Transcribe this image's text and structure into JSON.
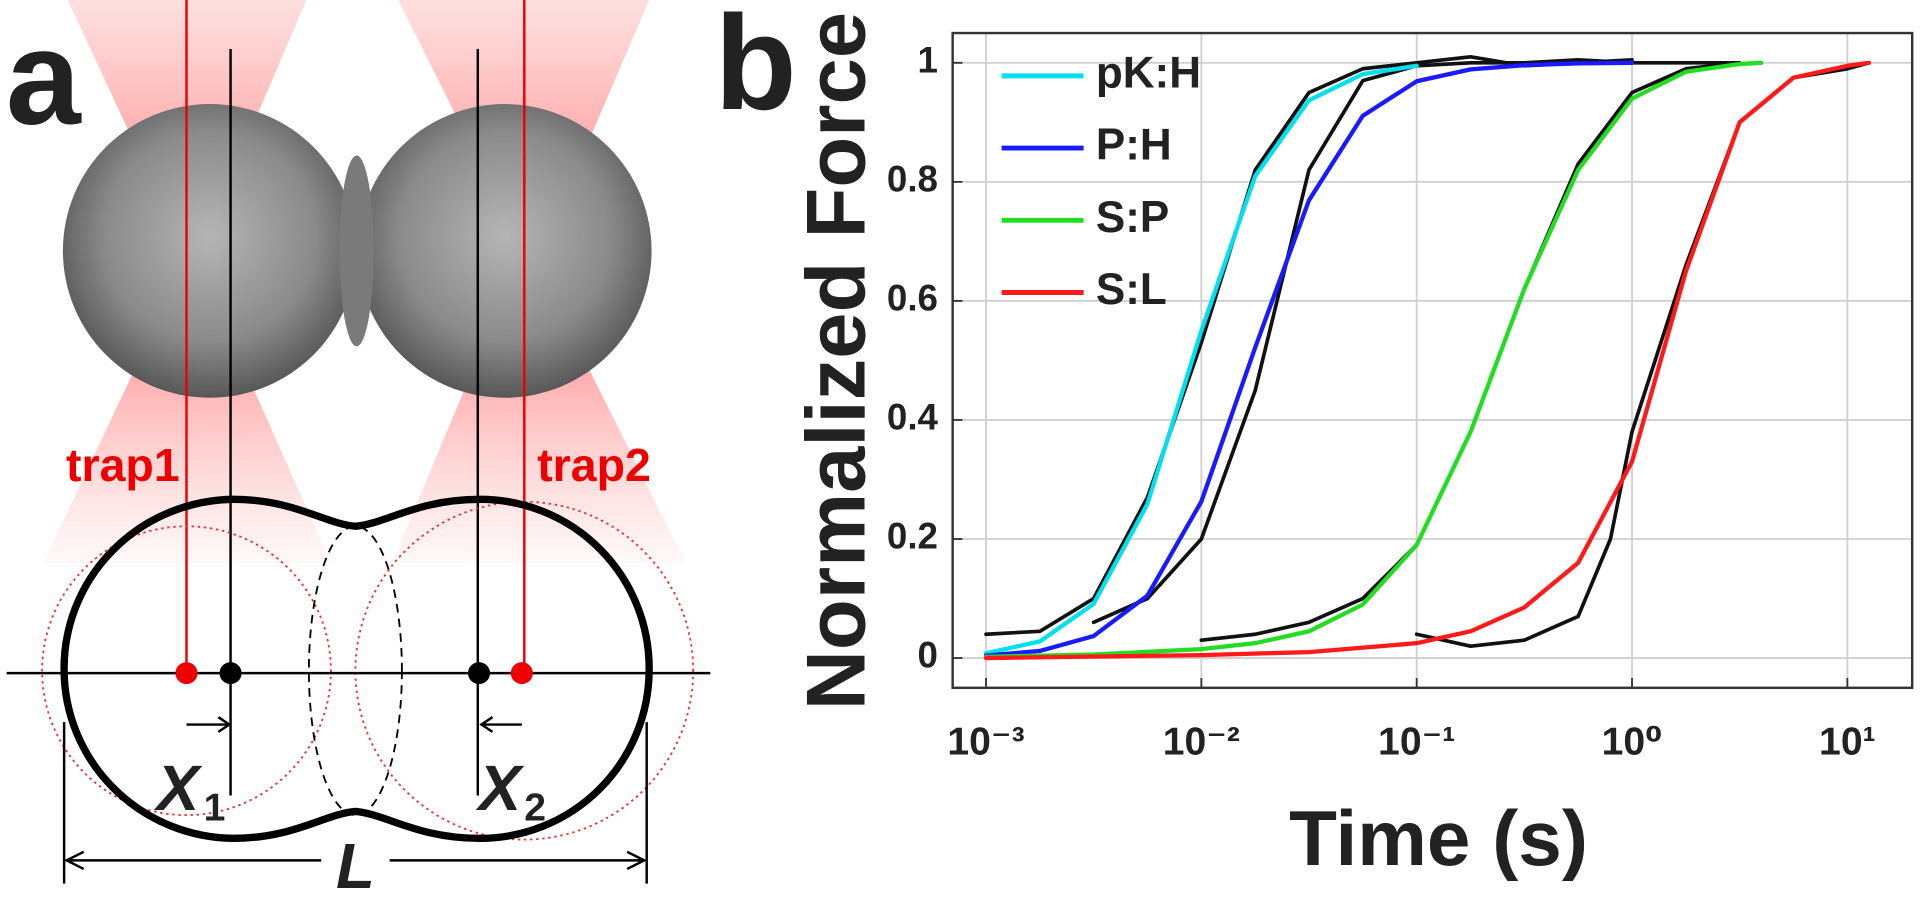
{
  "diagram": {
    "panel_label": "a",
    "trap_labels": [
      "trap1",
      "trap2"
    ],
    "displacements": [
      {
        "symbol": "X",
        "subscript": "1"
      },
      {
        "symbol": "X",
        "subscript": "2"
      }
    ],
    "length_label": "L"
  },
  "chart_data": {
    "type": "line",
    "panel_label": "b",
    "xlabel": "Time (s)",
    "ylabel": "Normalized Force",
    "xscale": "log",
    "xlim": [
      0.0007,
      20
    ],
    "ylim": [
      -0.05,
      1.05
    ],
    "xticks": [
      {
        "value": 0.001,
        "label": "10⁻³"
      },
      {
        "value": 0.01,
        "label": "10⁻²"
      },
      {
        "value": 0.1,
        "label": "10⁻¹"
      },
      {
        "value": 1,
        "label": "10⁰"
      },
      {
        "value": 10,
        "label": "10¹"
      }
    ],
    "yticks": [
      0,
      0.2,
      0.4,
      0.6,
      0.8,
      1
    ],
    "grid": true,
    "legend": "upper left",
    "series": [
      {
        "color": "#111111",
        "x": [
          0.001,
          0.00178,
          0.00316,
          0.00562,
          0.01,
          0.0178,
          0.0316,
          0.0562,
          0.1,
          0.178,
          0.316,
          0.562,
          1
        ],
        "values": [
          0.04,
          0.045,
          0.1,
          0.27,
          0.53,
          0.82,
          0.95,
          0.99,
          1.0,
          1.01,
          0.995,
          1.0,
          1.005
        ]
      },
      {
        "color": "#111111",
        "x": [
          0.00316,
          0.00562,
          0.01,
          0.0178,
          0.0316,
          0.0562,
          0.1,
          0.178,
          0.316,
          0.562,
          1,
          1.78,
          3.16
        ],
        "values": [
          0.06,
          0.1,
          0.2,
          0.45,
          0.82,
          0.97,
          0.995,
          1.0,
          1.0,
          1.005,
          1.0,
          1.0,
          1.0
        ]
      },
      {
        "color": "#111111",
        "x": [
          0.01,
          0.0178,
          0.0316,
          0.0562,
          0.1,
          0.178,
          0.316,
          0.562,
          1,
          1.78,
          3.16
        ],
        "values": [
          0.03,
          0.04,
          0.06,
          0.1,
          0.19,
          0.38,
          0.62,
          0.83,
          0.95,
          0.99,
          1.0
        ]
      },
      {
        "color": "#111111",
        "x": [
          0.1,
          0.178,
          0.316,
          0.562,
          0.794,
          1,
          1.78,
          3.16,
          5.62,
          10,
          12.6
        ],
        "values": [
          0.04,
          0.02,
          0.03,
          0.07,
          0.2,
          0.38,
          0.66,
          0.9,
          0.975,
          0.99,
          1.0
        ]
      },
      {
        "name": "pK:H",
        "color": "#00e0ee",
        "x": [
          0.001,
          0.00178,
          0.00316,
          0.00562,
          0.01,
          0.0178,
          0.0316,
          0.0562,
          0.1
        ],
        "values": [
          0.008,
          0.028,
          0.091,
          0.259,
          0.55,
          0.81,
          0.937,
          0.981,
          0.995
        ]
      },
      {
        "name": "P:H",
        "color": "#1a1aff",
        "x": [
          0.001,
          0.00178,
          0.00316,
          0.00562,
          0.01,
          0.0178,
          0.0316,
          0.0562,
          0.1,
          0.178,
          0.316,
          0.562,
          1
        ],
        "values": [
          0.004,
          0.012,
          0.037,
          0.105,
          0.263,
          0.522,
          0.769,
          0.911,
          0.969,
          0.989,
          0.996,
          0.999,
          1.0
        ]
      },
      {
        "name": "S:P",
        "color": "#22dd22",
        "x": [
          0.001,
          0.00316,
          0.01,
          0.0178,
          0.0316,
          0.0562,
          0.1,
          0.178,
          0.316,
          0.562,
          1,
          1.78,
          3.16,
          3.98
        ],
        "values": [
          0.002,
          0.006,
          0.015,
          0.025,
          0.045,
          0.09,
          0.19,
          0.38,
          0.62,
          0.82,
          0.94,
          0.985,
          0.998,
          1.0
        ]
      },
      {
        "name": "S:L",
        "color": "#ff1a1a",
        "x": [
          0.001,
          0.01,
          0.0316,
          0.1,
          0.178,
          0.316,
          0.562,
          1,
          1.78,
          3.16,
          5.62,
          10,
          12.6
        ],
        "values": [
          0.0,
          0.005,
          0.01,
          0.025,
          0.045,
          0.085,
          0.16,
          0.33,
          0.65,
          0.9,
          0.975,
          0.995,
          1.0
        ]
      }
    ]
  }
}
